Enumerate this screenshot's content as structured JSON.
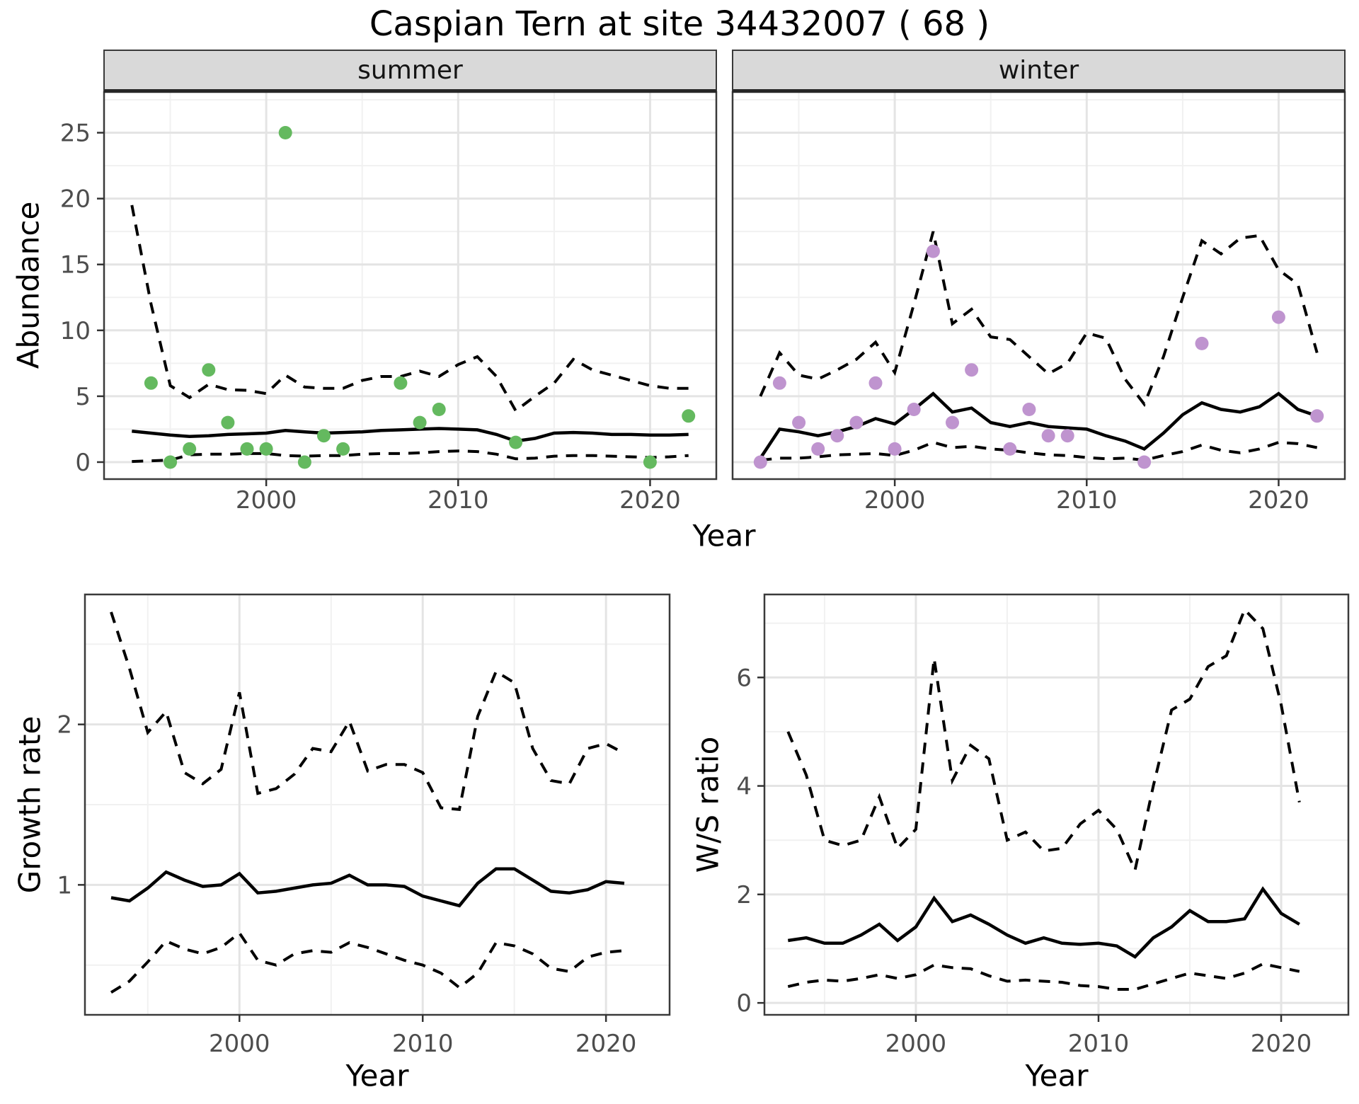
{
  "title": "Caspian Tern at site 34432007 ( 68 )",
  "facets": {
    "summer_label": "summer",
    "winter_label": "winter"
  },
  "axis_titles": {
    "abundance": "Abundance",
    "growth_rate": "Growth rate",
    "ws_ratio": "W/S ratio",
    "year_top": "Year",
    "year_growth": "Year",
    "year_ws": "Year"
  },
  "colors": {
    "summer_point": "#64b95f",
    "winter_point": "#bf94cf",
    "line": "#000000",
    "panel_border": "#3a3a3a",
    "tick_mark": "#333333",
    "tick_label": "#4d4d4d",
    "grid_major": "#e4e4e4",
    "grid_minor": "#f1f1f1",
    "strip_fill": "#d9d9d9"
  },
  "chart_data": [
    {
      "id": "abundance-summer",
      "type": "line",
      "facet": "summer",
      "ylabel": "Abundance",
      "xlabel": "Year",
      "xlim": [
        1991.55,
        2023.45
      ],
      "ylim": [
        -1.29,
        28.09
      ],
      "x_major_ticks": [
        2000,
        2010,
        2020
      ],
      "x_minor_ticks": [
        1995,
        2005,
        2015
      ],
      "y_major_ticks": [
        0,
        5,
        10,
        15,
        20,
        25
      ],
      "y_minor_ticks": [
        2.5,
        7.5,
        12.5,
        17.5,
        22.5,
        27.5
      ],
      "show_y_tick_labels": true,
      "years": [
        1993,
        1994,
        1995,
        1996,
        1997,
        1998,
        1999,
        2000,
        2001,
        2002,
        2003,
        2004,
        2005,
        2006,
        2007,
        2008,
        2009,
        2010,
        2011,
        2012,
        2013,
        2014,
        2015,
        2016,
        2017,
        2018,
        2019,
        2020,
        2021,
        2022
      ],
      "series": [
        {
          "name": "median",
          "style": "solid",
          "values": [
            2.35,
            2.2,
            2.05,
            1.95,
            2.0,
            2.1,
            2.15,
            2.2,
            2.4,
            2.3,
            2.2,
            2.25,
            2.3,
            2.4,
            2.45,
            2.5,
            2.55,
            2.5,
            2.45,
            2.1,
            1.6,
            1.8,
            2.2,
            2.25,
            2.2,
            2.1,
            2.1,
            2.05,
            2.05,
            2.1
          ]
        },
        {
          "name": "upper_ci",
          "style": "dashed",
          "values": [
            19.5,
            12.0,
            5.8,
            4.9,
            5.9,
            5.5,
            5.45,
            5.2,
            6.6,
            5.7,
            5.6,
            5.6,
            6.2,
            6.5,
            6.5,
            6.9,
            6.5,
            7.4,
            8.0,
            6.5,
            3.9,
            5.0,
            6.0,
            7.8,
            7.0,
            6.6,
            6.2,
            5.8,
            5.6,
            5.6
          ]
        },
        {
          "name": "lower_ci",
          "style": "dashed",
          "values": [
            0.05,
            0.1,
            0.15,
            0.55,
            0.6,
            0.6,
            0.65,
            0.65,
            0.5,
            0.45,
            0.5,
            0.5,
            0.6,
            0.65,
            0.65,
            0.7,
            0.8,
            0.85,
            0.8,
            0.6,
            0.25,
            0.3,
            0.45,
            0.5,
            0.5,
            0.45,
            0.4,
            0.35,
            0.4,
            0.5
          ]
        }
      ],
      "points": {
        "color_key": "summer_point",
        "x": [
          1994,
          1995,
          1996,
          1997,
          1998,
          1999,
          2000,
          2001,
          2002,
          2003,
          2004,
          2007,
          2008,
          2009,
          2013,
          2020,
          2022
        ],
        "y": [
          6,
          0,
          1,
          7,
          3,
          1,
          1,
          25,
          0,
          2,
          1,
          6,
          3,
          4,
          1.5,
          0,
          3.5
        ]
      }
    },
    {
      "id": "abundance-winter",
      "type": "line",
      "facet": "winter",
      "ylabel": "Abundance",
      "xlabel": "Year",
      "xlim": [
        1991.55,
        2023.45
      ],
      "ylim": [
        -1.29,
        28.09
      ],
      "x_major_ticks": [
        2000,
        2010,
        2020
      ],
      "x_minor_ticks": [
        1995,
        2005,
        2015
      ],
      "y_major_ticks": [
        0,
        5,
        10,
        15,
        20,
        25
      ],
      "y_minor_ticks": [
        2.5,
        7.5,
        12.5,
        17.5,
        22.5,
        27.5
      ],
      "show_y_tick_labels": false,
      "years": [
        1993,
        1994,
        1995,
        1996,
        1997,
        1998,
        1999,
        2000,
        2001,
        2002,
        2003,
        2004,
        2005,
        2006,
        2007,
        2008,
        2009,
        2010,
        2011,
        2012,
        2013,
        2014,
        2015,
        2016,
        2017,
        2018,
        2019,
        2020,
        2021,
        2022
      ],
      "series": [
        {
          "name": "median",
          "style": "solid",
          "values": [
            0.3,
            2.5,
            2.3,
            2.0,
            2.3,
            2.7,
            3.3,
            2.9,
            4.0,
            5.2,
            3.8,
            4.1,
            3.0,
            2.7,
            3.0,
            2.7,
            2.6,
            2.5,
            2.0,
            1.6,
            1.0,
            2.2,
            3.6,
            4.5,
            4.0,
            3.8,
            4.2,
            5.2,
            4.0,
            3.5
          ]
        },
        {
          "name": "upper_ci",
          "style": "dashed",
          "values": [
            5.0,
            8.3,
            6.6,
            6.3,
            7.0,
            7.8,
            9.1,
            6.8,
            12.0,
            17.5,
            10.5,
            11.6,
            9.5,
            9.3,
            8.0,
            6.7,
            7.5,
            9.8,
            9.4,
            6.3,
            4.4,
            8.0,
            12.5,
            16.8,
            15.8,
            17.0,
            17.2,
            14.6,
            13.5,
            8.3
          ]
        },
        {
          "name": "lower_ci",
          "style": "dashed",
          "values": [
            0.15,
            0.3,
            0.3,
            0.4,
            0.55,
            0.6,
            0.65,
            0.5,
            0.9,
            1.5,
            1.1,
            1.2,
            1.0,
            0.9,
            0.7,
            0.55,
            0.5,
            0.35,
            0.25,
            0.3,
            0.15,
            0.5,
            0.8,
            1.3,
            0.9,
            0.7,
            1.0,
            1.5,
            1.4,
            1.1
          ]
        }
      ],
      "points": {
        "color_key": "winter_point",
        "x": [
          1993,
          1994,
          1995,
          1996,
          1997,
          1998,
          1999,
          2000,
          2001,
          2002,
          2003,
          2004,
          2006,
          2007,
          2008,
          2009,
          2013,
          2016,
          2020,
          2022
        ],
        "y": [
          0,
          6,
          3,
          1,
          2,
          3,
          6,
          1,
          4,
          16,
          3,
          7,
          1,
          4,
          2,
          2,
          0,
          9,
          11,
          3.5
        ]
      }
    },
    {
      "id": "growth-rate",
      "type": "line",
      "facet": null,
      "ylabel": "Growth rate",
      "xlabel": "Year",
      "xlim": [
        1991.57,
        2023.47
      ],
      "ylim": [
        0.19,
        2.81
      ],
      "x_major_ticks": [
        2000,
        2010,
        2020
      ],
      "x_minor_ticks": [
        1995,
        2005,
        2015
      ],
      "y_major_ticks": [
        1,
        2
      ],
      "y_minor_ticks": [
        0.5,
        1.5,
        2.5
      ],
      "show_y_tick_labels": true,
      "years": [
        1993,
        1994,
        1995,
        1996,
        1997,
        1998,
        1999,
        2000,
        2001,
        2002,
        2003,
        2004,
        2005,
        2006,
        2007,
        2008,
        2009,
        2010,
        2011,
        2012,
        2013,
        2014,
        2015,
        2016,
        2017,
        2018,
        2019,
        2020,
        2021
      ],
      "series": [
        {
          "name": "median",
          "style": "solid",
          "values": [
            0.92,
            0.9,
            0.98,
            1.08,
            1.03,
            0.99,
            1.0,
            1.07,
            0.95,
            0.96,
            0.98,
            1.0,
            1.01,
            1.06,
            1.0,
            1.0,
            0.99,
            0.93,
            0.9,
            0.87,
            1.01,
            1.1,
            1.1,
            1.03,
            0.96,
            0.95,
            0.97,
            1.02,
            1.01
          ]
        },
        {
          "name": "upper_ci",
          "style": "dashed",
          "values": [
            2.7,
            2.35,
            1.95,
            2.08,
            1.7,
            1.63,
            1.72,
            2.2,
            1.57,
            1.6,
            1.69,
            1.85,
            1.83,
            2.02,
            1.71,
            1.75,
            1.75,
            1.7,
            1.48,
            1.47,
            2.05,
            2.33,
            2.26,
            1.85,
            1.65,
            1.63,
            1.85,
            1.88,
            1.82
          ]
        },
        {
          "name": "lower_ci",
          "style": "dashed",
          "values": [
            0.33,
            0.4,
            0.52,
            0.65,
            0.6,
            0.57,
            0.61,
            0.7,
            0.53,
            0.5,
            0.57,
            0.59,
            0.58,
            0.64,
            0.61,
            0.57,
            0.53,
            0.5,
            0.45,
            0.36,
            0.45,
            0.64,
            0.62,
            0.57,
            0.48,
            0.46,
            0.55,
            0.58,
            0.59
          ]
        }
      ],
      "points": null
    },
    {
      "id": "ws-ratio",
      "type": "line",
      "facet": null,
      "ylabel": "W/S ratio",
      "xlabel": "Year",
      "xlim": [
        1991.71,
        2023.68
      ],
      "ylim": [
        -0.22,
        7.53
      ],
      "x_major_ticks": [
        2000,
        2010,
        2020
      ],
      "x_minor_ticks": [
        1995,
        2005,
        2015
      ],
      "y_major_ticks": [
        0,
        2,
        4,
        6
      ],
      "y_minor_ticks": [
        1,
        3,
        5,
        7
      ],
      "show_y_tick_labels": true,
      "years": [
        1993,
        1994,
        1995,
        1996,
        1997,
        1998,
        1999,
        2000,
        2001,
        2002,
        2003,
        2004,
        2005,
        2006,
        2007,
        2008,
        2009,
        2010,
        2011,
        2012,
        2013,
        2014,
        2015,
        2016,
        2017,
        2018,
        2019,
        2020,
        2021
      ],
      "series": [
        {
          "name": "median",
          "style": "solid",
          "values": [
            1.15,
            1.2,
            1.1,
            1.1,
            1.25,
            1.45,
            1.15,
            1.4,
            1.93,
            1.5,
            1.62,
            1.45,
            1.25,
            1.1,
            1.2,
            1.1,
            1.08,
            1.1,
            1.05,
            0.85,
            1.2,
            1.4,
            1.7,
            1.5,
            1.5,
            1.55,
            2.1,
            1.65,
            1.45
          ]
        },
        {
          "name": "upper_ci",
          "style": "dashed",
          "values": [
            5.0,
            4.2,
            3.0,
            2.9,
            3.0,
            3.8,
            2.85,
            3.2,
            6.35,
            4.1,
            4.75,
            4.5,
            3.0,
            3.15,
            2.8,
            2.85,
            3.3,
            3.55,
            3.2,
            2.45,
            4.0,
            5.4,
            5.6,
            6.2,
            6.4,
            7.25,
            6.9,
            5.5,
            3.7
          ]
        },
        {
          "name": "lower_ci",
          "style": "dashed",
          "values": [
            0.3,
            0.38,
            0.42,
            0.4,
            0.45,
            0.52,
            0.45,
            0.52,
            0.7,
            0.65,
            0.63,
            0.5,
            0.4,
            0.42,
            0.4,
            0.38,
            0.32,
            0.3,
            0.25,
            0.25,
            0.35,
            0.45,
            0.55,
            0.5,
            0.45,
            0.55,
            0.72,
            0.65,
            0.58
          ]
        }
      ],
      "points": null
    }
  ]
}
